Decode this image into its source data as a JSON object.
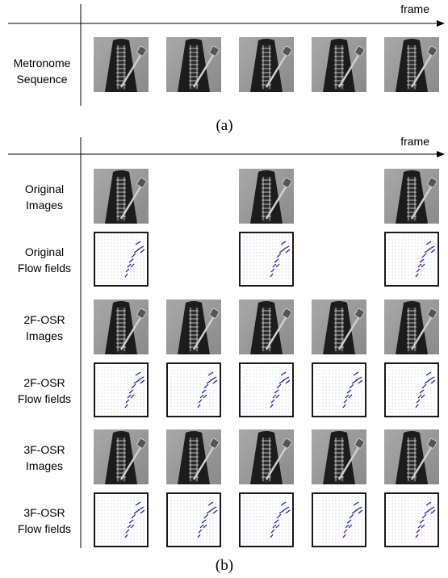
{
  "panel_a": {
    "axis_label": "frame",
    "row_label": [
      "Metronome",
      "Sequence"
    ],
    "caption": "(a)"
  },
  "panel_b": {
    "axis_label": "frame",
    "rows": [
      {
        "label": [
          "Original",
          "Images"
        ]
      },
      {
        "label": [
          "Original",
          "Flow fields"
        ]
      },
      {
        "label": [
          "2F-OSR",
          "Images"
        ]
      },
      {
        "label": [
          "2F-OSR",
          "Flow fields"
        ]
      },
      {
        "label": [
          "3F-OSR",
          "Images"
        ]
      },
      {
        "label": [
          "3F-OSR",
          "Flow fields"
        ]
      }
    ],
    "caption": "(b)"
  }
}
